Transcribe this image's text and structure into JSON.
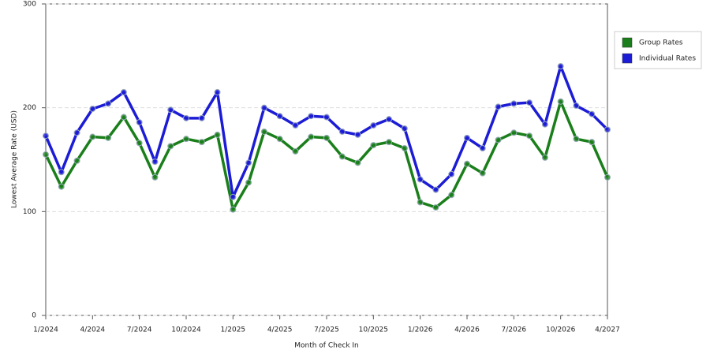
{
  "chart_data": {
    "type": "line",
    "x_label": "Month of Check In",
    "y_label": "Lowest Average Rate (USD)",
    "categories": [
      "1/2024",
      null,
      null,
      "4/2024",
      null,
      null,
      "7/2024",
      null,
      null,
      "10/2024",
      null,
      null,
      "1/2025",
      null,
      null,
      "4/2025",
      null,
      null,
      "7/2025",
      null,
      null,
      "10/2025",
      null,
      null,
      "1/2026",
      null,
      null,
      "4/2026",
      null,
      null,
      "7/2026",
      null,
      null,
      "10/2026",
      null,
      null,
      "4/2027"
    ],
    "series": [
      {
        "name": "Group Rates",
        "color": "#1a7f1a",
        "values": [
          155,
          124,
          149,
          172,
          171,
          191,
          166,
          133,
          163,
          170,
          167,
          174,
          102,
          128,
          177,
          170,
          158,
          172,
          171,
          153,
          147,
          164,
          167,
          161,
          109,
          104,
          116,
          146,
          137,
          169,
          176,
          173,
          152,
          206,
          170,
          167,
          133
        ]
      },
      {
        "name": "Individual Rates",
        "color": "#1c1cd6",
        "values": [
          173,
          138,
          176,
          199,
          204,
          215,
          186,
          148,
          198,
          190,
          190,
          215,
          114,
          147,
          200,
          192,
          183,
          192,
          191,
          177,
          174,
          183,
          189,
          180,
          131,
          121,
          136,
          171,
          161,
          201,
          204,
          205,
          184,
          240,
          202,
          194,
          179
        ]
      }
    ],
    "ylim": [
      0,
      300
    ],
    "yticks": [
      0,
      100,
      200,
      300
    ],
    "grid": true
  }
}
